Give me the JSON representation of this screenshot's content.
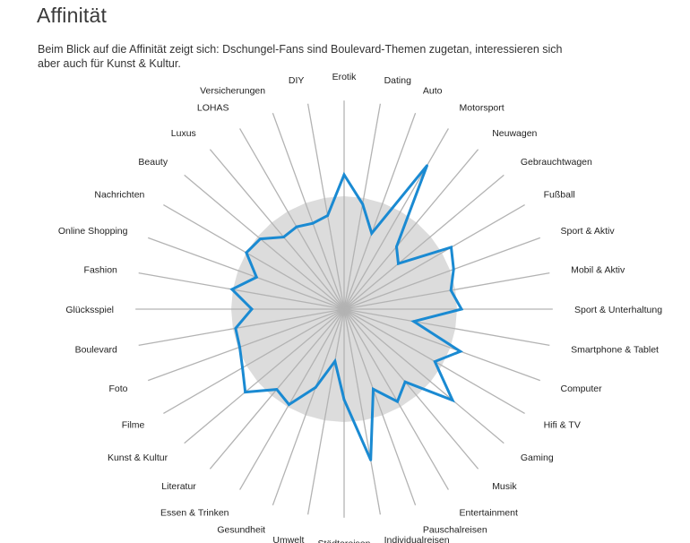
{
  "page": {
    "title": "Affinität",
    "subtitle": "Beim Blick auf die Affinität zeigt sich: Dschungel-Fans sind Boulevard-Themen zugetan, interessieren sich aber auch für Kunst & Kultur."
  },
  "chart_data": {
    "type": "radar",
    "title": "Affinität",
    "categories": [
      "Erotik",
      "Dating",
      "Auto",
      "Motorsport",
      "Neuwagen",
      "Gebrauchtwagen",
      "Fußball",
      "Sport & Aktiv",
      "Mobil & Aktiv",
      "Sport & Unterhaltung",
      "Smartphone & Tablet",
      "Computer",
      "Hifi & TV",
      "Gaming",
      "Musik",
      "Entertainment",
      "Pauschalreisen",
      "Individualreisen",
      "Städtereisen",
      "Umwelt",
      "Gesundheit",
      "Essen & Trinken",
      "Literatur",
      "Kunst & Kultur",
      "Filme",
      "Foto",
      "Boulevard",
      "Glücksspiel",
      "Fashion",
      "Online Shopping",
      "Nachrichten",
      "Beauty",
      "Luxus",
      "LOHAS",
      "Versicherungen",
      "DIY"
    ],
    "series": [
      {
        "values": [
          150,
          119,
          90,
          185,
          91,
          79,
          138,
          130,
          121,
          131,
          79,
          138,
          117,
          158,
          106,
          119,
          95,
          171,
          101,
          59,
          93,
          123,
          117,
          144,
          131,
          124,
          123,
          103,
          127,
          104,
          126,
          122,
          105,
          106,
          102,
          106
        ]
      }
    ],
    "reference_values": [
      126,
      126,
      126,
      126,
      126,
      126,
      126,
      126,
      126,
      126,
      126,
      126,
      126,
      126,
      126,
      126,
      126,
      126,
      126,
      126,
      126,
      126,
      126,
      126,
      126,
      126,
      126,
      126,
      126,
      126,
      126,
      126,
      126,
      126,
      126,
      126
    ],
    "rlim": [
      0,
      240
    ],
    "colors": {
      "series": "#1a8ad2",
      "reference": "#dcdcdc",
      "axes": "#b3b3b3",
      "labels": "#222222"
    },
    "legend": "none"
  }
}
